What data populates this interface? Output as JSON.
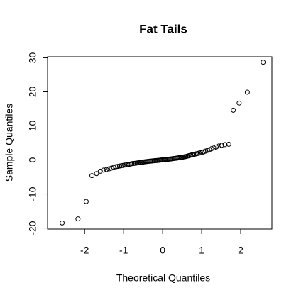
{
  "chart_data": {
    "type": "scatter",
    "title": "Fat Tails",
    "x_label": "Theoretical Quantiles",
    "y_label": "Sample Quantiles",
    "xlim": [
      -2.95,
      2.8
    ],
    "ylim": [
      -20.3,
      30.3
    ],
    "xticks": [
      -2,
      -1,
      0,
      1,
      2
    ],
    "yticks": [
      -20,
      -10,
      0,
      10,
      20,
      30
    ],
    "color": "#000000",
    "x": [
      -2.576,
      -2.17,
      -1.96,
      -1.812,
      -1.695,
      -1.598,
      -1.514,
      -1.44,
      -1.372,
      -1.311,
      -1.254,
      -1.2,
      -1.15,
      -1.103,
      -1.058,
      -1.015,
      -0.974,
      -0.935,
      -0.896,
      -0.86,
      -0.824,
      -0.789,
      -0.755,
      -0.722,
      -0.69,
      -0.659,
      -0.628,
      -0.598,
      -0.568,
      -0.539,
      -0.51,
      -0.482,
      -0.454,
      -0.426,
      -0.399,
      -0.372,
      -0.345,
      -0.319,
      -0.292,
      -0.266,
      -0.24,
      -0.215,
      -0.189,
      -0.164,
      -0.138,
      -0.113,
      -0.088,
      -0.063,
      -0.038,
      -0.013,
      0.013,
      0.038,
      0.063,
      0.088,
      0.113,
      0.138,
      0.164,
      0.189,
      0.215,
      0.24,
      0.266,
      0.292,
      0.319,
      0.345,
      0.372,
      0.399,
      0.426,
      0.454,
      0.482,
      0.51,
      0.539,
      0.568,
      0.598,
      0.628,
      0.659,
      0.69,
      0.722,
      0.755,
      0.789,
      0.824,
      0.86,
      0.896,
      0.935,
      0.974,
      1.015,
      1.058,
      1.103,
      1.15,
      1.2,
      1.254,
      1.311,
      1.372,
      1.44,
      1.514,
      1.598,
      1.695,
      1.812,
      1.96,
      2.17,
      2.576
    ],
    "values": [
      -18.5,
      -17.3,
      -12.2,
      -4.6,
      -4.0,
      -3.3,
      -3.0,
      -2.8,
      -2.6,
      -2.4,
      -2.2,
      -2.0,
      -1.9,
      -1.8,
      -1.7,
      -1.6,
      -1.5,
      -1.45,
      -1.35,
      -1.3,
      -1.2,
      -1.1,
      -1.05,
      -1.0,
      -0.95,
      -0.9,
      -0.85,
      -0.8,
      -0.75,
      -0.7,
      -0.65,
      -0.6,
      -0.55,
      -0.5,
      -0.47,
      -0.43,
      -0.4,
      -0.36,
      -0.33,
      -0.3,
      -0.27,
      -0.24,
      -0.21,
      -0.18,
      -0.15,
      -0.12,
      -0.09,
      -0.06,
      -0.03,
      0.0,
      0.03,
      0.06,
      0.09,
      0.12,
      0.15,
      0.18,
      0.22,
      0.26,
      0.3,
      0.34,
      0.38,
      0.42,
      0.46,
      0.5,
      0.55,
      0.6,
      0.65,
      0.7,
      0.75,
      0.8,
      0.87,
      0.94,
      1.0,
      1.1,
      1.2,
      1.3,
      1.4,
      1.5,
      1.6,
      1.7,
      1.8,
      1.9,
      2.0,
      2.1,
      2.2,
      2.4,
      2.6,
      2.8,
      3.0,
      3.3,
      3.5,
      3.8,
      4.1,
      4.3,
      4.5,
      4.6,
      14.6,
      16.7,
      19.9,
      28.7
    ]
  }
}
